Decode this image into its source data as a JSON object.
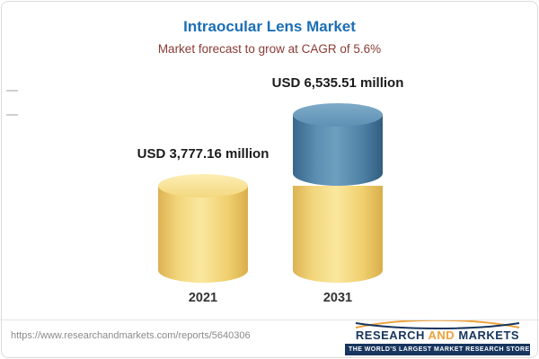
{
  "header": {
    "title": "Intraocular Lens Market",
    "subtitle": "Market forecast to grow at CAGR of 5.6%",
    "title_color": "#1c6fb5",
    "subtitle_color": "#8a3b34"
  },
  "chart_data": {
    "type": "bar",
    "style": "3d-cylinder",
    "title": "Intraocular Lens Market",
    "subtitle": "Market forecast to grow at CAGR of 5.6%",
    "unit": "USD million",
    "categories": [
      "2021",
      "2031"
    ],
    "values": [
      3777.16,
      6535.51
    ],
    "value_labels": [
      "USD 3,777.16 million",
      "USD 6,535.51 million"
    ],
    "cagr": "5.6%",
    "legend": "none",
    "grid": "off",
    "colors": {
      "base_segment": "#f2cf6b",
      "growth_segment": "#4d80a5"
    }
  },
  "footer": {
    "url": "https://www.researchandmarkets.com/reports/5640306",
    "logo": {
      "research": "RESEARCH",
      "and": "AND",
      "markets": "MARKETS",
      "tagline": "THE WORLD'S LARGEST MARKET RESEARCH STORE",
      "navy": "#17355e",
      "orange": "#eda23c"
    }
  }
}
